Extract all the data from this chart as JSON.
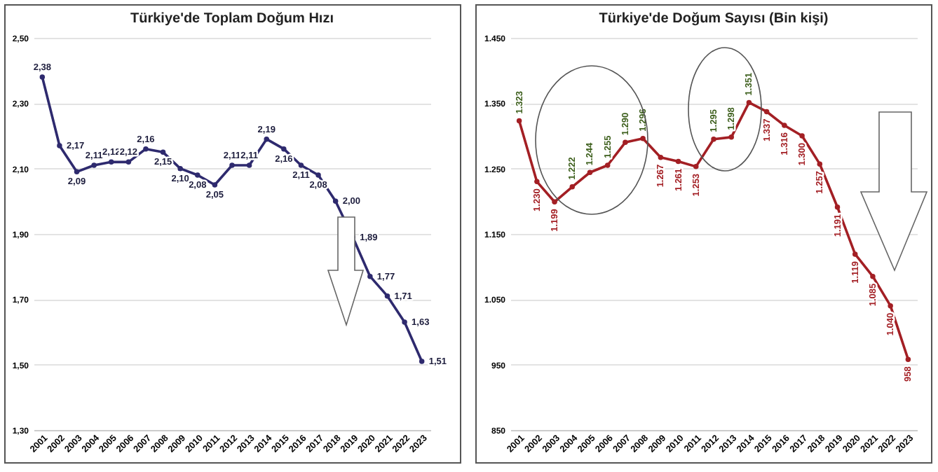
{
  "chart_data": [
    {
      "type": "line",
      "title": "Türkiye'de Toplam Doğum Hızı",
      "categories": [
        "2001",
        "2002",
        "2003",
        "2004",
        "2005",
        "2006",
        "2007",
        "2008",
        "2009",
        "2010",
        "2011",
        "2012",
        "2013",
        "2014",
        "2015",
        "2016",
        "2017",
        "2018",
        "2019",
        "2020",
        "2021",
        "2022",
        "2023"
      ],
      "series": [
        {
          "color": "#2e2a6e",
          "values": [
            2.38,
            2.17,
            2.09,
            2.11,
            2.12,
            2.12,
            2.16,
            2.15,
            2.1,
            2.08,
            2.05,
            2.11,
            2.11,
            2.19,
            2.16,
            2.11,
            2.08,
            2.0,
            1.89,
            1.77,
            1.71,
            1.63,
            1.51
          ],
          "value_labels": [
            "2,38",
            "2,17",
            "2,09",
            "2,11",
            "2,12",
            "2,12",
            "2,16",
            "2,15",
            "2,10",
            "2,08",
            "2,05",
            "2,11",
            "2,11",
            "2,19",
            "2,16",
            "2,11",
            "2,08",
            "2,00",
            "1,89",
            "1,77",
            "1,71",
            "1,63",
            "1,51"
          ]
        }
      ],
      "ylim": [
        1.3,
        2.5
      ],
      "yticks": [
        {
          "value": 1.3,
          "label": "1,30"
        },
        {
          "value": 1.5,
          "label": "1,50"
        },
        {
          "value": 1.7,
          "label": "1,70"
        },
        {
          "value": 1.9,
          "label": "1,90"
        },
        {
          "value": 2.1,
          "label": "2,10"
        },
        {
          "value": 2.3,
          "label": "2,30"
        },
        {
          "value": 2.5,
          "label": "2,50"
        }
      ],
      "grid": "y",
      "marker": "circle",
      "line_style": "solid"
    },
    {
      "type": "line",
      "title": "Türkiye'de Doğum Sayısı (Bin kişi)",
      "categories": [
        "2001",
        "2002",
        "2003",
        "2004",
        "2005",
        "2006",
        "2007",
        "2008",
        "2009",
        "2010",
        "2011",
        "2012",
        "2013",
        "2014",
        "2015",
        "2016",
        "2017",
        "2018",
        "2019",
        "2020",
        "2021",
        "2022",
        "2023"
      ],
      "series": [
        {
          "color": "#a31f24",
          "values": [
            1323,
            1230,
            1199,
            1222,
            1244,
            1255,
            1290,
            1296,
            1267,
            1261,
            1253,
            1295,
            1298,
            1351,
            1337,
            1316,
            1300,
            1257,
            1191,
            1119,
            1085,
            1040,
            958
          ],
          "value_labels": [
            "1.323",
            "1.230",
            "1.199",
            "1.222",
            "1.244",
            "1.255",
            "1.290",
            "1.296",
            "1.267",
            "1.261",
            "1.253",
            "1.295",
            "1.298",
            "1.351",
            "1.337",
            "1.316",
            "1.300",
            "1.257",
            "1.191",
            "1.119",
            "1.085",
            "1.040",
            "958"
          ]
        }
      ],
      "ylim": [
        850,
        1450
      ],
      "yticks": [
        {
          "value": 850,
          "label": "850"
        },
        {
          "value": 950,
          "label": "950"
        },
        {
          "value": 1050,
          "label": "1.050"
        },
        {
          "value": 1150,
          "label": "1.150"
        },
        {
          "value": 1250,
          "label": "1.250"
        },
        {
          "value": 1350,
          "label": "1.350"
        },
        {
          "value": 1450,
          "label": "1.450"
        }
      ],
      "grid": "y",
      "marker": "circle",
      "line_style": "solid"
    }
  ]
}
